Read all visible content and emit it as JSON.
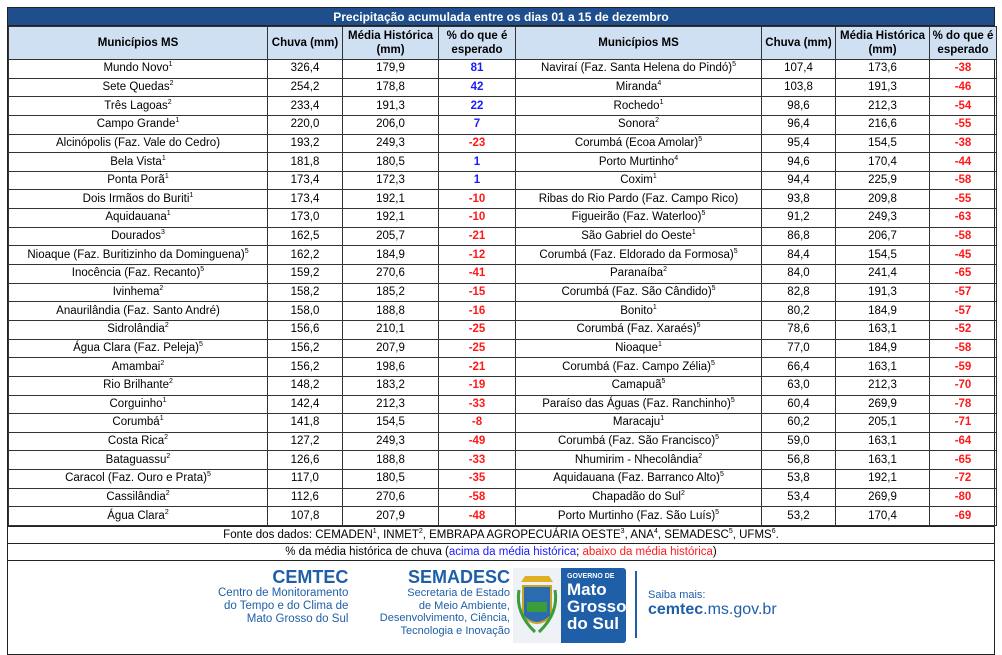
{
  "title": "Precipitação acumulada entre os dias 01 a 15 de dezembro",
  "headers": {
    "municipio": "Municípios MS",
    "chuva": "Chuva (mm)",
    "media": "Média Histórica (mm)",
    "pct": "% do que é esperado"
  },
  "colors": {
    "above": "#1a1aff",
    "below": "#ff1a1a",
    "title_bg": "#1f4e8c",
    "header_bg": "#cfe0f3"
  },
  "left_rows": [
    {
      "name": "Mundo Novo",
      "sup": "1",
      "chuva": "326,4",
      "media": "179,9",
      "pct": "81"
    },
    {
      "name": "Sete Quedas",
      "sup": "2",
      "chuva": "254,2",
      "media": "178,8",
      "pct": "42"
    },
    {
      "name": "Três Lagoas",
      "sup": "2",
      "chuva": "233,4",
      "media": "191,3",
      "pct": "22"
    },
    {
      "name": "Campo Grande",
      "sup": "1",
      "chuva": "220,0",
      "media": "206,0",
      "pct": "7"
    },
    {
      "name": "Alcinópolis (Faz. Vale do Cedro)",
      "sup": "",
      "chuva": "193,2",
      "media": "249,3",
      "pct": "-23"
    },
    {
      "name": "Bela Vista",
      "sup": "1",
      "chuva": "181,8",
      "media": "180,5",
      "pct": "1"
    },
    {
      "name": "Ponta Porã",
      "sup": "1",
      "chuva": "173,4",
      "media": "172,3",
      "pct": "1"
    },
    {
      "name": "Dois Irmãos do Buriti",
      "sup": "1",
      "chuva": "173,4",
      "media": "192,1",
      "pct": "-10"
    },
    {
      "name": "Aquidauana",
      "sup": "1",
      "chuva": "173,0",
      "media": "192,1",
      "pct": "-10"
    },
    {
      "name": "Dourados",
      "sup": "3",
      "chuva": "162,5",
      "media": "205,7",
      "pct": "-21"
    },
    {
      "name": "Nioaque (Faz. Buritizinho da Dominguena)",
      "sup": "5",
      "chuva": "162,2",
      "media": "184,9",
      "pct": "-12"
    },
    {
      "name": "Inocência (Faz. Recanto)",
      "sup": "5",
      "chuva": "159,2",
      "media": "270,6",
      "pct": "-41"
    },
    {
      "name": "Ivinhema",
      "sup": "2",
      "chuva": "158,2",
      "media": "185,2",
      "pct": "-15"
    },
    {
      "name": "Anaurilândia (Faz. Santo André)",
      "sup": "",
      "chuva": "158,0",
      "media": "188,8",
      "pct": "-16"
    },
    {
      "name": "Sidrolândia",
      "sup": "2",
      "chuva": "156,6",
      "media": "210,1",
      "pct": "-25"
    },
    {
      "name": "Água Clara (Faz. Peleja)",
      "sup": "5",
      "chuva": "156,2",
      "media": "207,9",
      "pct": "-25"
    },
    {
      "name": "Amambai",
      "sup": "2",
      "chuva": "156,2",
      "media": "198,6",
      "pct": "-21"
    },
    {
      "name": "Rio Brilhante",
      "sup": "2",
      "chuva": "148,2",
      "media": "183,2",
      "pct": "-19"
    },
    {
      "name": "Corguinho",
      "sup": "1",
      "chuva": "142,4",
      "media": "212,3",
      "pct": "-33"
    },
    {
      "name": "Corumbá",
      "sup": "1",
      "chuva": "141,8",
      "media": "154,5",
      "pct": "-8"
    },
    {
      "name": "Costa Rica",
      "sup": "2",
      "chuva": "127,2",
      "media": "249,3",
      "pct": "-49"
    },
    {
      "name": "Bataguassu",
      "sup": "2",
      "chuva": "126,6",
      "media": "188,8",
      "pct": "-33"
    },
    {
      "name": "Caracol (Faz. Ouro e Prata)",
      "sup": "5",
      "chuva": "117,0",
      "media": "180,5",
      "pct": "-35"
    },
    {
      "name": "Cassilândia",
      "sup": "2",
      "chuva": "112,6",
      "media": "270,6",
      "pct": "-58"
    },
    {
      "name": "Água Clara",
      "sup": "2",
      "chuva": "107,8",
      "media": "207,9",
      "pct": "-48"
    }
  ],
  "right_rows": [
    {
      "name": "Naviraí (Faz. Santa Helena do Pindó)",
      "sup": "5",
      "chuva": "107,4",
      "media": "173,6",
      "pct": "-38"
    },
    {
      "name": "Miranda",
      "sup": "4",
      "chuva": "103,8",
      "media": "191,3",
      "pct": "-46"
    },
    {
      "name": "Rochedo",
      "sup": "1",
      "chuva": "98,6",
      "media": "212,3",
      "pct": "-54"
    },
    {
      "name": "Sonora",
      "sup": "2",
      "chuva": "96,4",
      "media": "216,6",
      "pct": "-55"
    },
    {
      "name": "Corumbá (Ecoa Amolar)",
      "sup": "5",
      "chuva": "95,4",
      "media": "154,5",
      "pct": "-38"
    },
    {
      "name": "Porto Murtinho",
      "sup": "4",
      "chuva": "94,6",
      "media": "170,4",
      "pct": "-44"
    },
    {
      "name": "Coxim",
      "sup": "1",
      "chuva": "94,4",
      "media": "225,9",
      "pct": "-58"
    },
    {
      "name": "Ribas do Rio Pardo (Faz. Campo Rico)",
      "sup": "",
      "chuva": "93,8",
      "media": "209,8",
      "pct": "-55"
    },
    {
      "name": "Figueirão (Faz. Waterloo)",
      "sup": "5",
      "chuva": "91,2",
      "media": "249,3",
      "pct": "-63"
    },
    {
      "name": "São Gabriel do Oeste",
      "sup": "1",
      "chuva": "86,8",
      "media": "206,7",
      "pct": "-58"
    },
    {
      "name": "Corumbá (Faz. Eldorado da Formosa)",
      "sup": "5",
      "chuva": "84,4",
      "media": "154,5",
      "pct": "-45"
    },
    {
      "name": "Paranaíba",
      "sup": "2",
      "chuva": "84,0",
      "media": "241,4",
      "pct": "-65"
    },
    {
      "name": "Corumbá (Faz. São Cândido)",
      "sup": "5",
      "chuva": "82,8",
      "media": "191,3",
      "pct": "-57"
    },
    {
      "name": "Bonito",
      "sup": "1",
      "chuva": "80,2",
      "media": "184,9",
      "pct": "-57"
    },
    {
      "name": "Corumbá (Faz. Xaraés)",
      "sup": "5",
      "chuva": "78,6",
      "media": "163,1",
      "pct": "-52"
    },
    {
      "name": "Nioaque",
      "sup": "1",
      "chuva": "77,0",
      "media": "184,9",
      "pct": "-58"
    },
    {
      "name": "Corumbá (Faz. Campo Zélia)",
      "sup": "5",
      "chuva": "66,4",
      "media": "163,1",
      "pct": "-59"
    },
    {
      "name": "Camapuã",
      "sup": "5",
      "chuva": "63,0",
      "media": "212,3",
      "pct": "-70"
    },
    {
      "name": "Paraíso das Águas (Faz. Ranchinho)",
      "sup": "5",
      "chuva": "60,4",
      "media": "269,9",
      "pct": "-78"
    },
    {
      "name": "Maracaju",
      "sup": "1",
      "chuva": "60,2",
      "media": "205,1",
      "pct": "-71"
    },
    {
      "name": "Corumbá (Faz. São Francisco)",
      "sup": "5",
      "chuva": "59,0",
      "media": "163,1",
      "pct": "-64"
    },
    {
      "name": "Nhumirim - Nhecolândia",
      "sup": "2",
      "chuva": "56,8",
      "media": "163,1",
      "pct": "-65"
    },
    {
      "name": "Aquidauana (Faz. Barranco Alto)",
      "sup": "5",
      "chuva": "53,8",
      "media": "192,1",
      "pct": "-72"
    },
    {
      "name": "Chapadão do Sul",
      "sup": "2",
      "chuva": "53,4",
      "media": "269,9",
      "pct": "-80"
    },
    {
      "name": "Porto Murtinho (Faz. São Luís)",
      "sup": "5",
      "chuva": "53,2",
      "media": "170,4",
      "pct": "-69"
    }
  ],
  "sources": {
    "label": "Fonte dos dados:",
    "items": [
      {
        "name": "CEMADEN",
        "sup": "1"
      },
      {
        "name": "INMET",
        "sup": "2"
      },
      {
        "name": "EMBRAPA AGROPECUÁRIA OESTE",
        "sup": "3"
      },
      {
        "name": "ANA",
        "sup": "4"
      },
      {
        "name": "SEMADESC",
        "sup": "5"
      },
      {
        "name": "UFMS",
        "sup": "6"
      }
    ]
  },
  "legend": {
    "prefix": "% da média histórica de chuva (",
    "above": "acima da média histórica",
    "sep": "; ",
    "below": "abaixo da média histórica",
    "suffix": ")"
  },
  "footer": {
    "cemtec": {
      "name": "CEMTEC",
      "l1": "Centro de Monitoramento",
      "l2": "do Tempo e do Clima de",
      "l3": "Mato Grosso do Sul"
    },
    "semadesc": {
      "name": "SEMADESC",
      "l1": "Secretaria de Estado",
      "l2": "de Meio Ambiente,",
      "l3": "Desenvolvimento, Ciência,",
      "l4": "Tecnologia e Inovação"
    },
    "gov": {
      "l1": "GOVERNO DE",
      "l2": "Mato",
      "l3": "Grosso",
      "l4": "do Sul"
    },
    "more": {
      "label": "Saiba mais:",
      "bold": "cemtec",
      "rest": ".ms.gov.br"
    }
  }
}
